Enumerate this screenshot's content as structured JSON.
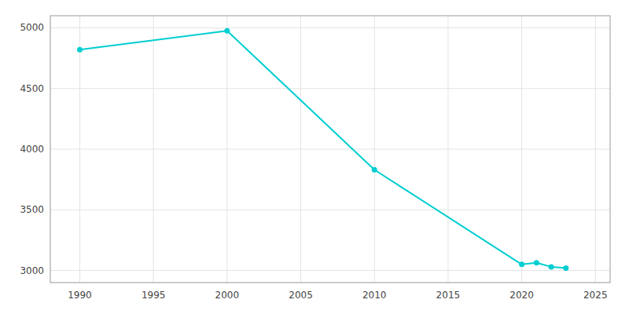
{
  "chart_data": {
    "type": "line",
    "x": [
      1990,
      2000,
      2010,
      2020,
      2021,
      2022,
      2023
    ],
    "values": [
      4820,
      4975,
      3830,
      3050,
      3063,
      3030,
      3020
    ],
    "color": "#00CED1",
    "marker": "circle",
    "xlim": [
      1988,
      2026
    ],
    "ylim": [
      2900,
      5100
    ],
    "xticks": [
      1990,
      1995,
      2000,
      2005,
      2010,
      2015,
      2020,
      2025
    ],
    "yticks": [
      3000,
      3500,
      4000,
      4500,
      5000
    ],
    "grid": true
  }
}
